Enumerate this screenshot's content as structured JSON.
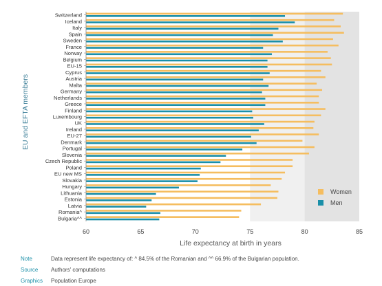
{
  "chart_data": {
    "type": "bar",
    "orientation": "horizontal",
    "categories": [
      "Switzerland",
      "Iceland",
      "Italy",
      "Spain",
      "Sweden",
      "France",
      "Norway",
      "Belgium",
      "EU-15",
      "Cyprus",
      "Austria",
      "Malta",
      "Germany",
      "Netherlands",
      "Greece",
      "Finland",
      "Luxembourg",
      "UK",
      "Ireland",
      "EU-27",
      "Denmark",
      "Portugal",
      "Slovenia",
      "Czech Republic",
      "Poland",
      "EU new MS",
      "Slovakia",
      "Hungary",
      "Lithuania",
      "Estonia",
      "Latvia",
      "Romania^",
      "Bulgaria^^"
    ],
    "series": [
      {
        "name": "Women",
        "color": "#f5bd5f",
        "values": [
          83.5,
          82.7,
          83.3,
          83.6,
          82.6,
          83.1,
          82.1,
          82.4,
          82.5,
          81.5,
          81.9,
          81.1,
          81.6,
          81.3,
          81.3,
          81.9,
          81.5,
          80.9,
          80.8,
          81.3,
          79.8,
          80.9,
          80.4,
          78.9,
          78.9,
          78.2,
          77.9,
          76.9,
          77.6,
          77.5,
          76.0,
          74.2,
          74.0
        ]
      },
      {
        "name": "Men",
        "color": "#1a8fa8",
        "values": [
          78.2,
          79.1,
          77.6,
          77.1,
          78.0,
          76.2,
          77.0,
          76.6,
          76.6,
          76.8,
          76.2,
          76.7,
          76.1,
          76.4,
          76.4,
          75.2,
          75.3,
          76.3,
          75.8,
          75.1,
          75.6,
          74.3,
          72.8,
          72.3,
          70.5,
          70.4,
          70.2,
          68.5,
          66.4,
          66.0,
          65.5,
          66.8,
          66.7
        ]
      }
    ],
    "xlabel": "Life expectancy at birth in years",
    "ylabel": "EU and EFTA members",
    "xlim": [
      60,
      85
    ],
    "xticks": [
      60,
      65,
      70,
      75,
      80,
      85
    ],
    "legend": "bottom-right",
    "grid": false,
    "background_bands": [
      "#ffffff",
      "#f0f0f0",
      "#e3e3e3"
    ]
  },
  "notes": [
    {
      "key": "Note",
      "value": "Data represent life expectancy of: ^ 84.5% of the Romanian and  ^^ 66.9% of the Bulgarian population."
    },
    {
      "key": "Source",
      "value": "Authors' computations"
    },
    {
      "key": "Graphics",
      "value": "Population Europe"
    }
  ]
}
